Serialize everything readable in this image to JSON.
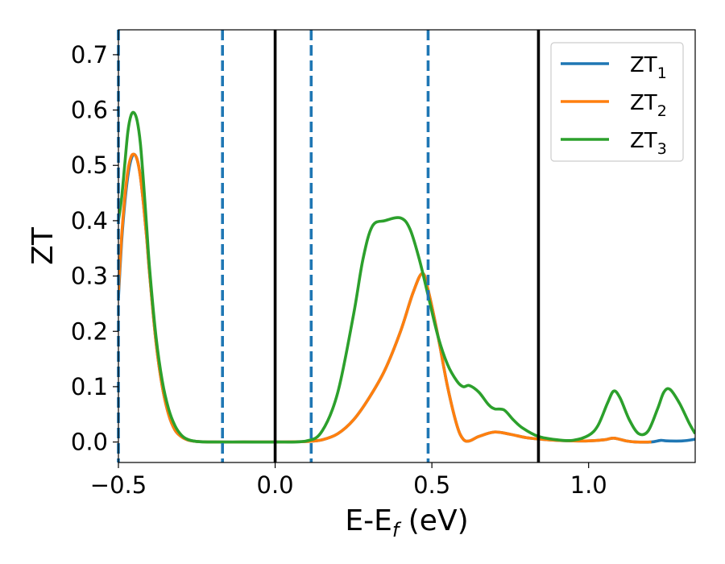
{
  "chart_data": {
    "type": "line",
    "xlabel_main": "E-E",
    "xlabel_sub": "f",
    "xlabel_unit": " (eV)",
    "ylabel": "ZT",
    "xlim": [
      -0.5,
      1.34
    ],
    "ylim": [
      -0.037,
      0.745
    ],
    "xticks": [
      {
        "value": -0.5,
        "label": "−0.5"
      },
      {
        "value": 0.0,
        "label": "0.0"
      },
      {
        "value": 0.5,
        "label": "0.5"
      },
      {
        "value": 1.0,
        "label": "1.0"
      }
    ],
    "yticks": [
      {
        "value": 0.0,
        "label": "0.0"
      },
      {
        "value": 0.1,
        "label": "0.1"
      },
      {
        "value": 0.2,
        "label": "0.2"
      },
      {
        "value": 0.3,
        "label": "0.3"
      },
      {
        "value": 0.4,
        "label": "0.4"
      },
      {
        "value": 0.5,
        "label": "0.5"
      },
      {
        "value": 0.6,
        "label": "0.6"
      },
      {
        "value": 0.7,
        "label": "0.7"
      }
    ],
    "vlines": [
      {
        "x": -0.5,
        "style": "dashed",
        "color": "#1f77b4"
      },
      {
        "x": -0.168,
        "style": "dashed",
        "color": "#1f77b4"
      },
      {
        "x": 0.0,
        "style": "solid",
        "color": "#000000"
      },
      {
        "x": 0.115,
        "style": "dashed",
        "color": "#1f77b4"
      },
      {
        "x": 0.488,
        "style": "dashed",
        "color": "#1f77b4"
      },
      {
        "x": 0.84,
        "style": "solid",
        "color": "#000000"
      }
    ],
    "legend_position": "top-right",
    "series": [
      {
        "name": "ZT",
        "subscript": "1",
        "color": "#1f77b4",
        "x": [
          -0.5,
          -0.49,
          -0.48,
          -0.47,
          -0.46,
          -0.45,
          -0.44,
          -0.43,
          -0.42,
          -0.41,
          -0.4,
          -0.38,
          -0.36,
          -0.34,
          -0.32,
          -0.3,
          -0.28,
          -0.25,
          -0.2,
          -0.1,
          0.0,
          0.1,
          0.15,
          0.2,
          0.25,
          0.3,
          0.35,
          0.4,
          0.44,
          0.47,
          0.49,
          0.52,
          0.55,
          0.58,
          0.6,
          0.62,
          0.65,
          0.7,
          0.75,
          0.8,
          0.85,
          0.9,
          0.95,
          1.0,
          1.05,
          1.08,
          1.12,
          1.15,
          1.2,
          1.23,
          1.25,
          1.3,
          1.34
        ],
        "y": [
          0.26,
          0.36,
          0.43,
          0.48,
          0.51,
          0.52,
          0.51,
          0.48,
          0.43,
          0.37,
          0.3,
          0.18,
          0.1,
          0.05,
          0.022,
          0.01,
          0.004,
          0.001,
          0.0,
          0.0,
          0.0,
          0.001,
          0.004,
          0.015,
          0.04,
          0.08,
          0.13,
          0.2,
          0.27,
          0.305,
          0.27,
          0.19,
          0.1,
          0.03,
          0.005,
          0.002,
          0.01,
          0.018,
          0.014,
          0.008,
          0.005,
          0.003,
          0.002,
          0.002,
          0.004,
          0.007,
          0.002,
          0.0,
          0.0,
          0.003,
          0.002,
          0.002,
          0.005
        ]
      },
      {
        "name": "ZT",
        "subscript": "2",
        "color": "#ff7f0e",
        "x": [
          -0.5,
          -0.49,
          -0.48,
          -0.47,
          -0.46,
          -0.45,
          -0.44,
          -0.43,
          -0.42,
          -0.41,
          -0.4,
          -0.38,
          -0.36,
          -0.34,
          -0.32,
          -0.3,
          -0.28,
          -0.25,
          -0.2,
          -0.1,
          0.0,
          0.1,
          0.15,
          0.2,
          0.25,
          0.3,
          0.35,
          0.4,
          0.44,
          0.47,
          0.49,
          0.52,
          0.55,
          0.58,
          0.6,
          0.62,
          0.65,
          0.7,
          0.75,
          0.8,
          0.85,
          0.9,
          0.95,
          1.0,
          1.05,
          1.08,
          1.12,
          1.15,
          1.2
        ],
        "y": [
          0.27,
          0.37,
          0.44,
          0.49,
          0.515,
          0.52,
          0.51,
          0.48,
          0.43,
          0.37,
          0.3,
          0.18,
          0.1,
          0.05,
          0.022,
          0.01,
          0.004,
          0.001,
          0.0,
          0.0,
          0.0,
          0.001,
          0.004,
          0.015,
          0.04,
          0.08,
          0.13,
          0.2,
          0.27,
          0.305,
          0.27,
          0.19,
          0.1,
          0.03,
          0.005,
          0.002,
          0.01,
          0.018,
          0.014,
          0.008,
          0.005,
          0.003,
          0.002,
          0.002,
          0.004,
          0.007,
          0.002,
          0.0,
          0.0
        ]
      },
      {
        "name": "ZT",
        "subscript": "3",
        "color": "#2ca02c",
        "x": [
          -0.5,
          -0.49,
          -0.48,
          -0.47,
          -0.46,
          -0.45,
          -0.44,
          -0.43,
          -0.42,
          -0.41,
          -0.4,
          -0.38,
          -0.36,
          -0.34,
          -0.32,
          -0.3,
          -0.28,
          -0.25,
          -0.2,
          -0.1,
          0.0,
          0.1,
          0.15,
          0.2,
          0.25,
          0.28,
          0.31,
          0.35,
          0.4,
          0.43,
          0.46,
          0.49,
          0.52,
          0.55,
          0.58,
          0.6,
          0.62,
          0.65,
          0.68,
          0.7,
          0.73,
          0.76,
          0.79,
          0.84,
          0.9,
          0.95,
          1.0,
          1.03,
          1.06,
          1.08,
          1.1,
          1.13,
          1.16,
          1.19,
          1.22,
          1.24,
          1.26,
          1.29,
          1.32,
          1.34
        ],
        "y": [
          0.4,
          0.44,
          0.5,
          0.56,
          0.59,
          0.595,
          0.58,
          0.54,
          0.47,
          0.39,
          0.31,
          0.19,
          0.11,
          0.06,
          0.03,
          0.013,
          0.005,
          0.001,
          0.0,
          0.0,
          0.0,
          0.002,
          0.02,
          0.09,
          0.23,
          0.33,
          0.39,
          0.4,
          0.405,
          0.385,
          0.33,
          0.26,
          0.19,
          0.14,
          0.11,
          0.1,
          0.102,
          0.09,
          0.068,
          0.06,
          0.058,
          0.04,
          0.025,
          0.01,
          0.004,
          0.003,
          0.012,
          0.03,
          0.07,
          0.092,
          0.08,
          0.04,
          0.015,
          0.02,
          0.06,
          0.09,
          0.095,
          0.07,
          0.035,
          0.015
        ]
      }
    ]
  }
}
